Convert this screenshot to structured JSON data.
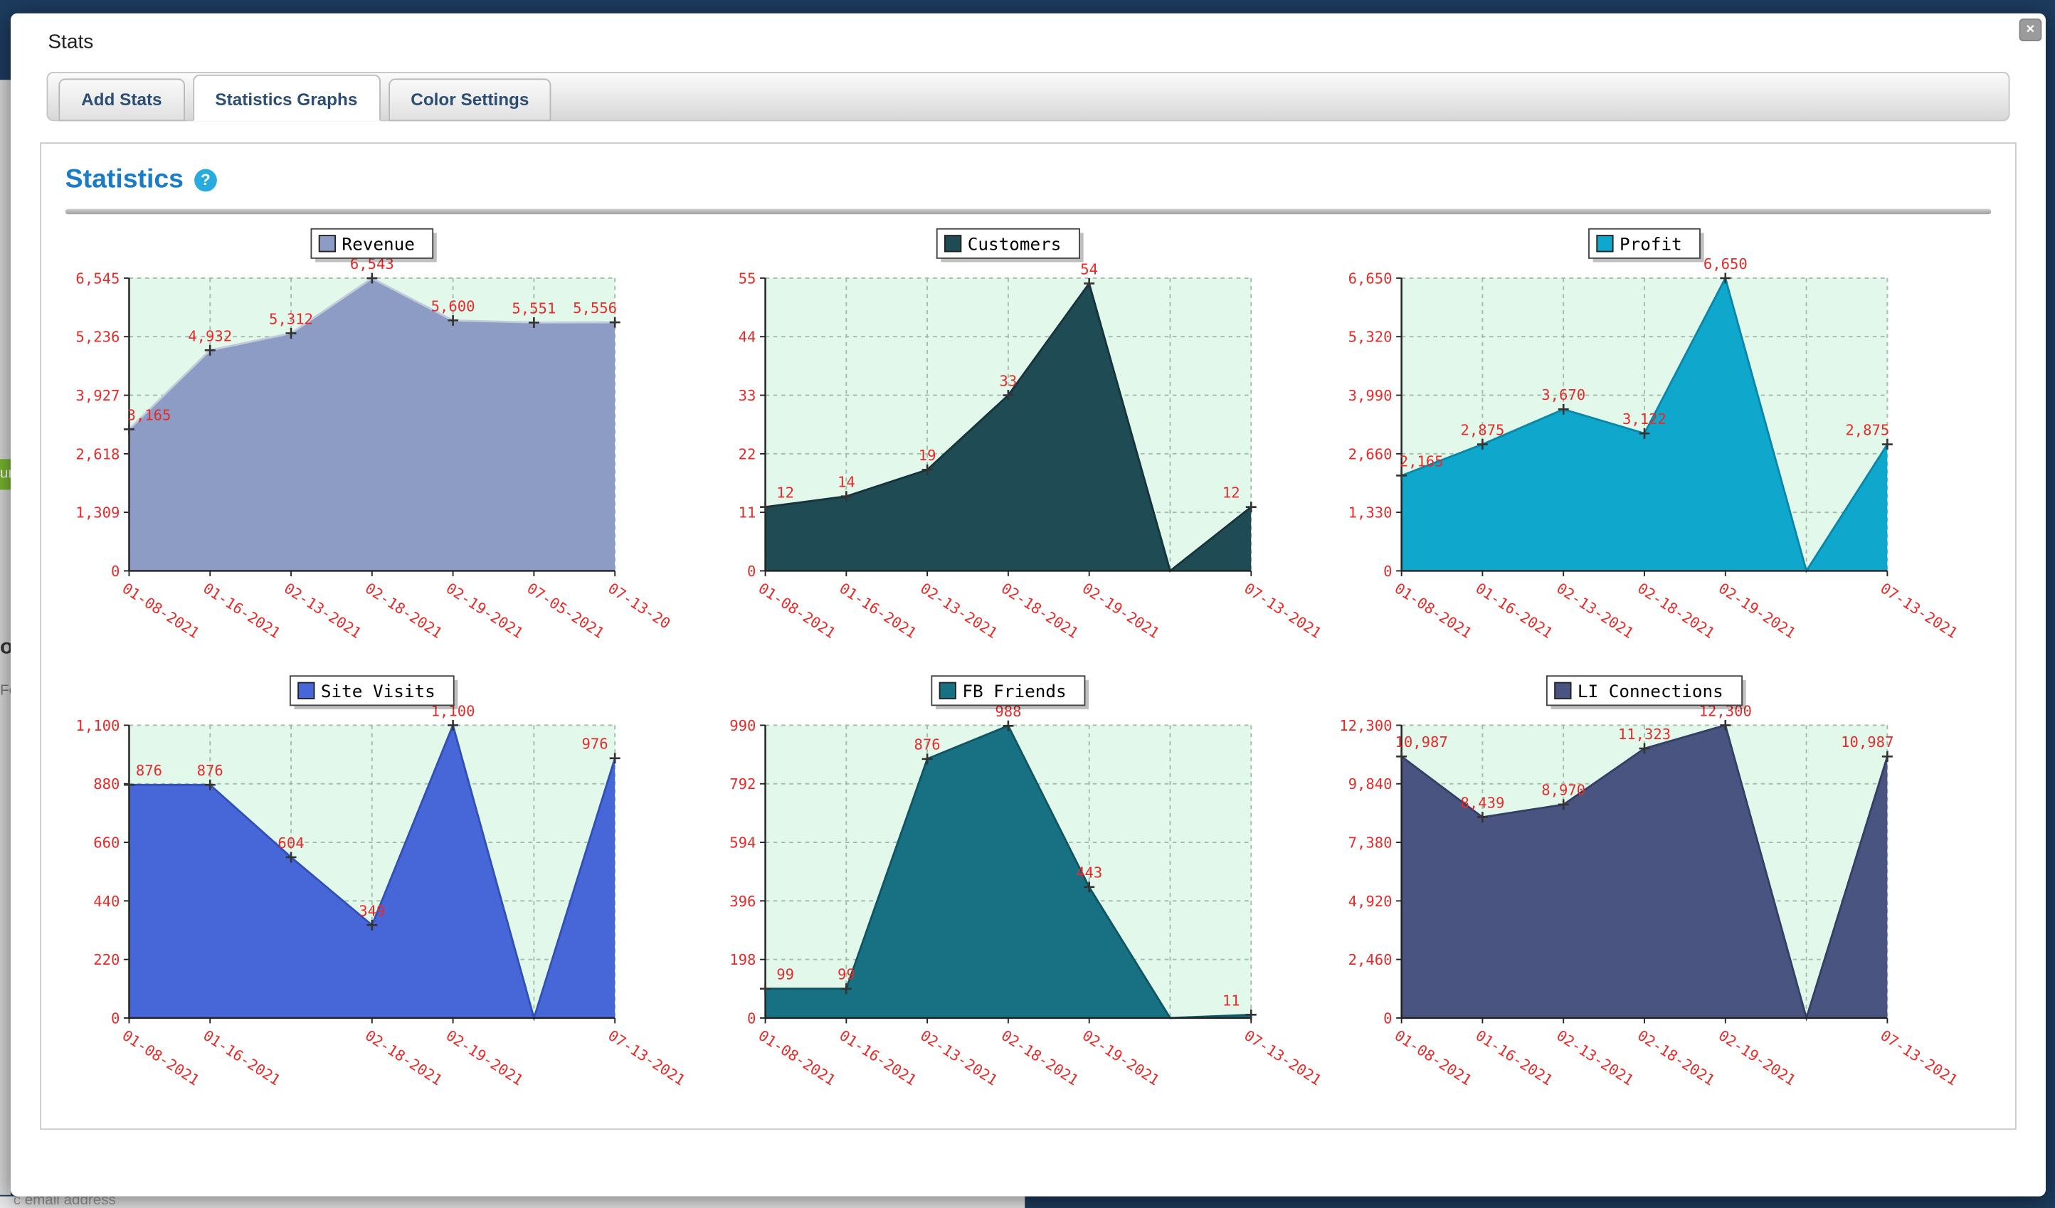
{
  "modal": {
    "title": "Stats",
    "close_label": "×"
  },
  "tabs": [
    {
      "label": "Add Stats",
      "active": false
    },
    {
      "label": "Statistics Graphs",
      "active": true
    },
    {
      "label": "Color Settings",
      "active": false
    }
  ],
  "panel": {
    "heading": "Statistics",
    "help_label": "?"
  },
  "background": {
    "fragments": {
      "button": "ur",
      "heading": "o",
      "label": "Fo",
      "email": "c email address"
    }
  },
  "chart_style": {
    "plot_bg": "#e2f8eb",
    "grid_color": "#a0bcab",
    "axis_color": "#222222",
    "label_color": "#e62b2b",
    "marker_color": "#333333",
    "legend_border": "#444444"
  },
  "chart_data": [
    {
      "type": "area",
      "title": "Revenue",
      "fill": "#8d9cc4",
      "line": "#c3cad9",
      "categories": [
        "01-08-2021",
        "01-16-2021",
        "02-13-2021",
        "02-18-2021",
        "02-19-2021",
        "07-05-2021",
        "07-13-20"
      ],
      "values": [
        3165,
        4932,
        5312,
        6543,
        5600,
        5551,
        5556
      ],
      "point_labels": [
        "3,165",
        "4,932",
        "5,312",
        "6,543",
        "5,600",
        "5,551",
        "5,556"
      ],
      "y_ticks": [
        "0",
        "1,309",
        "2,618",
        "3,927",
        "5,236",
        "6,545"
      ],
      "ylim": [
        0,
        6545
      ],
      "grid": true,
      "legend_position": "top-center"
    },
    {
      "type": "area",
      "title": "Customers",
      "fill": "#1f4b55",
      "line": "#16343c",
      "categories": [
        "01-08-2021",
        "01-16-2021",
        "02-13-2021",
        "02-18-2021",
        "02-19-2021",
        "",
        "07-13-2021"
      ],
      "values": [
        12,
        14,
        19,
        33,
        54,
        0,
        12
      ],
      "point_labels": [
        "12",
        "14",
        "19",
        "33",
        "54",
        "",
        "12"
      ],
      "y_ticks": [
        "0",
        "11",
        "22",
        "33",
        "44",
        "55"
      ],
      "ylim": [
        0,
        55
      ],
      "grid": true,
      "legend_position": "top-center"
    },
    {
      "type": "area",
      "title": "Profit",
      "fill": "#0fa7cc",
      "line": "#0c86a6",
      "categories": [
        "01-08-2021",
        "01-16-2021",
        "02-13-2021",
        "02-18-2021",
        "02-19-2021",
        "",
        "07-13-2021"
      ],
      "values": [
        2165,
        2875,
        3670,
        3122,
        6650,
        0,
        2875
      ],
      "point_labels": [
        "2,165",
        "2,875",
        "3,670",
        "3,122",
        "6,650",
        "",
        "2,875"
      ],
      "y_ticks": [
        "0",
        "1,330",
        "2,660",
        "3,990",
        "5,320",
        "6,650"
      ],
      "ylim": [
        0,
        6650
      ],
      "grid": true,
      "legend_position": "top-center"
    },
    {
      "type": "area",
      "title": "Site Visits",
      "fill": "#4766d8",
      "line": "#3250b4",
      "categories": [
        "01-08-2021",
        "01-16-2021",
        "",
        "02-18-2021",
        "02-19-2021",
        "",
        "07-13-2021"
      ],
      "values": [
        876,
        876,
        604,
        349,
        1100,
        0,
        976
      ],
      "point_labels": [
        "876",
        "876",
        "604",
        "349",
        "1,100",
        "",
        "976"
      ],
      "y_ticks": [
        "0",
        "220",
        "440",
        "660",
        "880",
        "1,100"
      ],
      "ylim": [
        0,
        1100
      ],
      "grid": true,
      "legend_position": "top-center"
    },
    {
      "type": "area",
      "title": "FB Friends",
      "fill": "#177183",
      "line": "#0f5562",
      "categories": [
        "01-08-2021",
        "01-16-2021",
        "02-13-2021",
        "02-18-2021",
        "02-19-2021",
        "",
        "07-13-2021"
      ],
      "values": [
        99,
        99,
        876,
        988,
        443,
        0,
        11
      ],
      "point_labels": [
        "99",
        "99",
        "876",
        "988",
        "443",
        "",
        "11"
      ],
      "y_ticks": [
        "0",
        "198",
        "396",
        "594",
        "792",
        "990"
      ],
      "ylim": [
        0,
        990
      ],
      "grid": true,
      "legend_position": "top-center"
    },
    {
      "type": "area",
      "title": "LI Connections",
      "fill": "#4a5480",
      "line": "#353f63",
      "categories": [
        "01-08-2021",
        "01-16-2021",
        "02-13-2021",
        "02-18-2021",
        "02-19-2021",
        "",
        "07-13-2021"
      ],
      "values": [
        10987,
        8439,
        8970,
        11323,
        12300,
        0,
        10987
      ],
      "point_labels": [
        "10,987",
        "8,439",
        "8,970",
        "11,323",
        "12,300",
        "",
        "10,987"
      ],
      "y_ticks": [
        "0",
        "2,460",
        "4,920",
        "7,380",
        "9,840",
        "12,300"
      ],
      "ylim": [
        0,
        12300
      ],
      "grid": true,
      "legend_position": "top-center"
    }
  ]
}
